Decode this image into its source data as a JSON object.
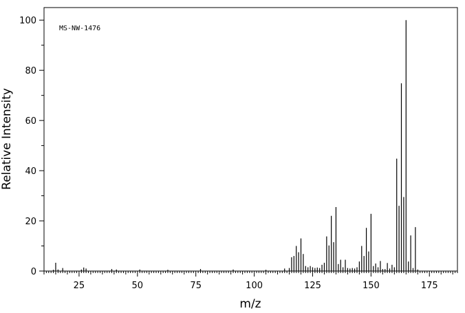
{
  "chart_data": {
    "type": "bar",
    "annotation": "MS-NW-1476",
    "xlabel": "m/z",
    "ylabel": "Relative Intensity",
    "xlim": [
      10,
      187
    ],
    "ylim": [
      0,
      105
    ],
    "xticks": [
      25,
      50,
      75,
      100,
      125,
      150,
      175
    ],
    "yticks": [
      0,
      20,
      40,
      60,
      80,
      100
    ],
    "grid": false,
    "peaks": [
      {
        "mz": 14,
        "intensity": 0.5
      },
      {
        "mz": 15,
        "intensity": 3.3
      },
      {
        "mz": 16,
        "intensity": 0.6
      },
      {
        "mz": 18,
        "intensity": 1.2
      },
      {
        "mz": 26,
        "intensity": 0.6
      },
      {
        "mz": 27,
        "intensity": 1.4
      },
      {
        "mz": 28,
        "intensity": 1.0
      },
      {
        "mz": 39,
        "intensity": 0.8
      },
      {
        "mz": 41,
        "intensity": 0.6
      },
      {
        "mz": 51,
        "intensity": 0.6
      },
      {
        "mz": 63,
        "intensity": 0.5
      },
      {
        "mz": 77,
        "intensity": 0.8
      },
      {
        "mz": 91,
        "intensity": 0.6
      },
      {
        "mz": 105,
        "intensity": 0.5
      },
      {
        "mz": 113,
        "intensity": 1.0
      },
      {
        "mz": 115,
        "intensity": 1.2
      },
      {
        "mz": 116,
        "intensity": 5.5
      },
      {
        "mz": 117,
        "intensity": 6.0
      },
      {
        "mz": 118,
        "intensity": 10.0
      },
      {
        "mz": 119,
        "intensity": 7.5
      },
      {
        "mz": 120,
        "intensity": 13.0
      },
      {
        "mz": 121,
        "intensity": 6.8
      },
      {
        "mz": 122,
        "intensity": 2.0
      },
      {
        "mz": 123,
        "intensity": 1.5
      },
      {
        "mz": 124,
        "intensity": 2.0
      },
      {
        "mz": 125,
        "intensity": 1.5
      },
      {
        "mz": 126,
        "intensity": 1.2
      },
      {
        "mz": 127,
        "intensity": 1.4
      },
      {
        "mz": 128,
        "intensity": 1.2
      },
      {
        "mz": 129,
        "intensity": 2.5
      },
      {
        "mz": 130,
        "intensity": 3.3
      },
      {
        "mz": 131,
        "intensity": 13.8
      },
      {
        "mz": 132,
        "intensity": 10.2
      },
      {
        "mz": 133,
        "intensity": 22.0
      },
      {
        "mz": 134,
        "intensity": 11.5
      },
      {
        "mz": 135,
        "intensity": 25.5
      },
      {
        "mz": 136,
        "intensity": 2.8
      },
      {
        "mz": 137,
        "intensity": 4.5
      },
      {
        "mz": 138,
        "intensity": 1.5
      },
      {
        "mz": 139,
        "intensity": 4.5
      },
      {
        "mz": 140,
        "intensity": 1.2
      },
      {
        "mz": 141,
        "intensity": 1.0
      },
      {
        "mz": 142,
        "intensity": 1.2
      },
      {
        "mz": 143,
        "intensity": 1.0
      },
      {
        "mz": 144,
        "intensity": 1.5
      },
      {
        "mz": 145,
        "intensity": 3.8
      },
      {
        "mz": 146,
        "intensity": 10.0
      },
      {
        "mz": 147,
        "intensity": 6.0
      },
      {
        "mz": 148,
        "intensity": 17.2
      },
      {
        "mz": 149,
        "intensity": 7.8
      },
      {
        "mz": 150,
        "intensity": 22.8
      },
      {
        "mz": 151,
        "intensity": 2.0
      },
      {
        "mz": 152,
        "intensity": 3.0
      },
      {
        "mz": 153,
        "intensity": 1.5
      },
      {
        "mz": 154,
        "intensity": 4.0
      },
      {
        "mz": 155,
        "intensity": 0.8
      },
      {
        "mz": 156,
        "intensity": 0.8
      },
      {
        "mz": 157,
        "intensity": 3.2
      },
      {
        "mz": 158,
        "intensity": 1.0
      },
      {
        "mz": 159,
        "intensity": 2.5
      },
      {
        "mz": 160,
        "intensity": 1.5
      },
      {
        "mz": 161,
        "intensity": 44.8
      },
      {
        "mz": 162,
        "intensity": 26.0
      },
      {
        "mz": 163,
        "intensity": 74.8
      },
      {
        "mz": 164,
        "intensity": 29.5
      },
      {
        "mz": 165,
        "intensity": 100.0
      },
      {
        "mz": 166,
        "intensity": 3.8
      },
      {
        "mz": 167,
        "intensity": 14.2
      },
      {
        "mz": 168,
        "intensity": 1.2
      },
      {
        "mz": 169,
        "intensity": 17.5
      },
      {
        "mz": 170,
        "intensity": 0.6
      }
    ]
  }
}
